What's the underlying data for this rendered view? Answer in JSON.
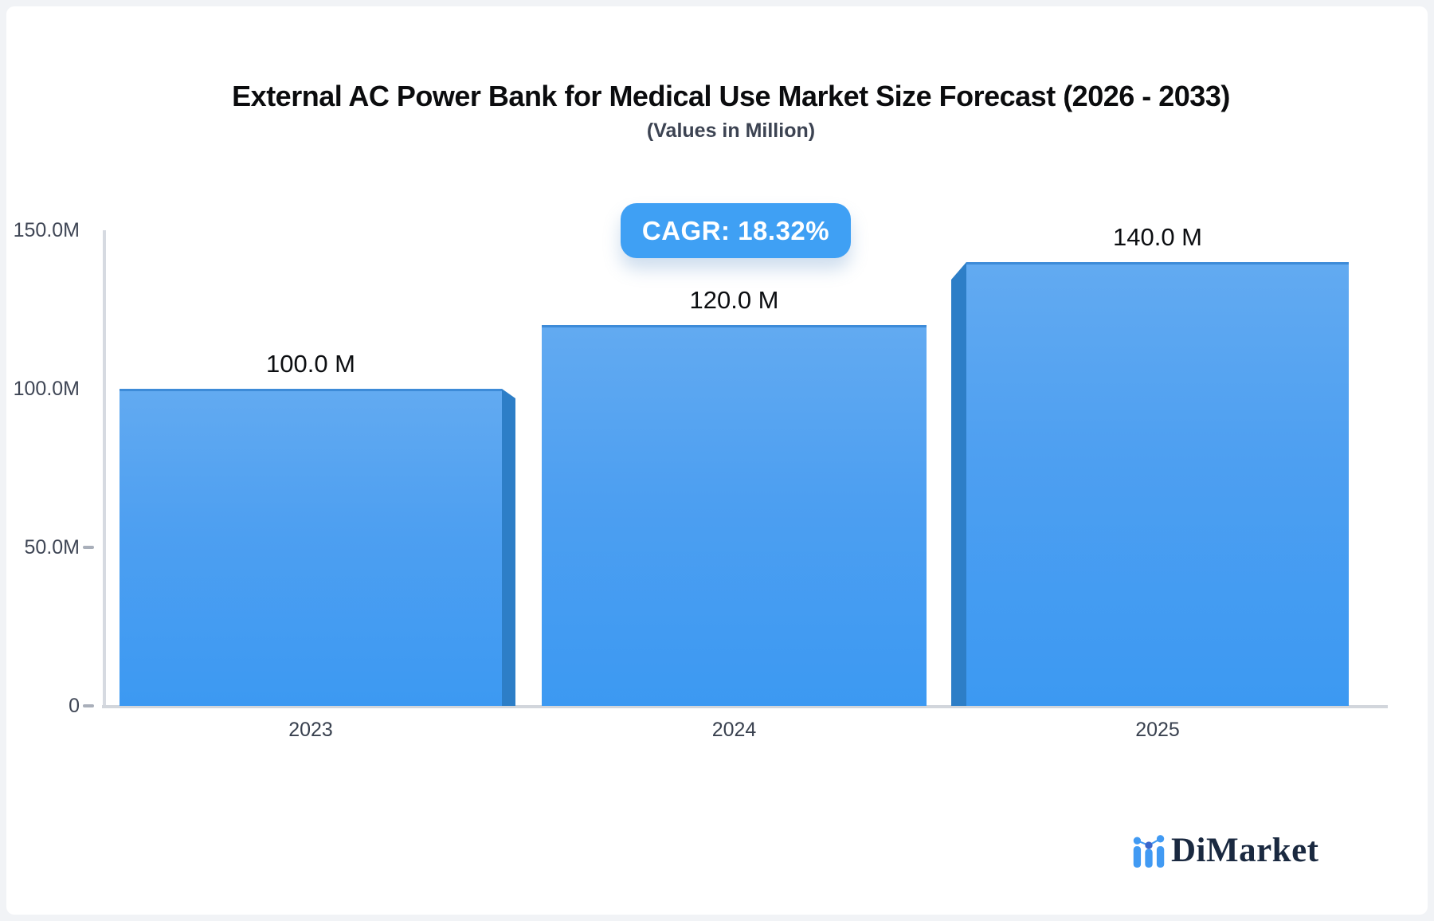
{
  "page": {
    "background": "#f1f3f6",
    "card_background": "#ffffff"
  },
  "header": {
    "title": "External AC Power Bank for Medical Use Market Size Forecast (2026 - 2033)",
    "subtitle": "(Values in Million)"
  },
  "badge": {
    "label": "CAGR: 18.32%",
    "background": "#3fa0f4",
    "text_color": "#ffffff"
  },
  "chart_data": {
    "type": "bar",
    "title": "External AC Power Bank for Medical Use Market Size Forecast (2026 - 2033)",
    "subtitle": "(Values in Million)",
    "categories": [
      "2023",
      "2024",
      "2025"
    ],
    "values": [
      100.0,
      120.0,
      140.0
    ],
    "unit": "Million",
    "value_labels": [
      "100.0 M",
      "120.0 M",
      "140.0 M"
    ],
    "y_ticks": [
      "150.0M",
      "100.0M",
      "50.0M",
      "0"
    ],
    "y_tick_values": [
      150,
      100,
      50,
      0
    ],
    "ylim": [
      0,
      150
    ],
    "xlabel": "",
    "ylabel": "",
    "grid": false,
    "legend": false,
    "cagr": "18.32%",
    "bar_color_top": "#62aaf1",
    "bar_color_bottom": "#3c99f2",
    "bar_side_color": "#2d7ec7",
    "bar_top_border_color": "#3d8bd8"
  },
  "logo": {
    "text": "DiMarket",
    "icon": "mini-bar-chart-icon",
    "icon_color": "#419af3",
    "icon_accent_color": "#3b66cc",
    "text_color": "#1a2940"
  }
}
